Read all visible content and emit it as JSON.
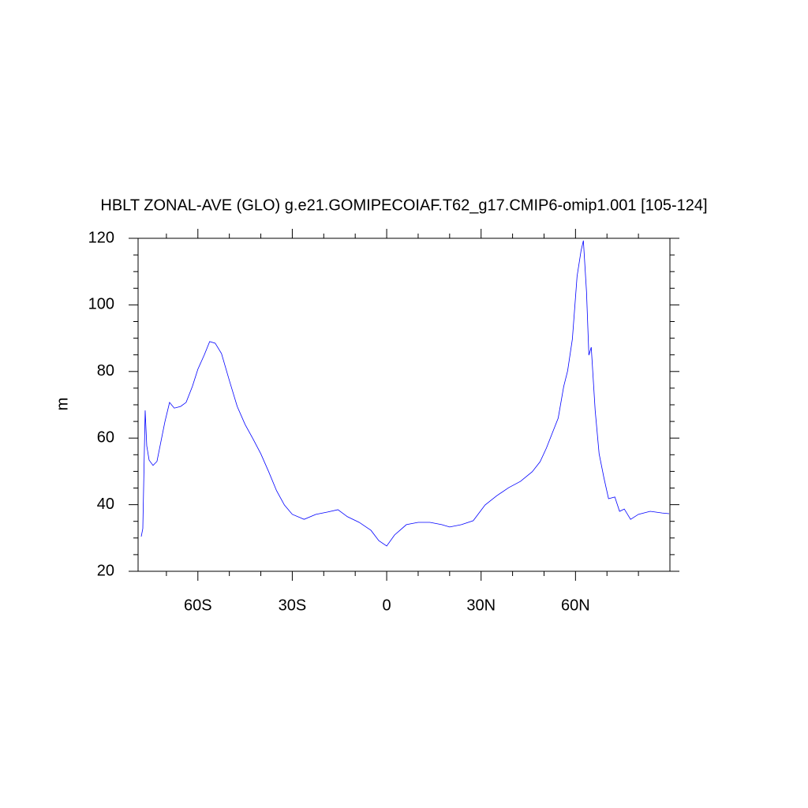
{
  "chart_data": {
    "type": "line",
    "title": "HBLT ZONAL-AVE (GLO) g.e21.GOMIPECOIAF.T62_g17.CMIP6-omip1.001 [105-124]",
    "ylabel": "m",
    "xlim": [
      -79,
      90
    ],
    "ylim": [
      20,
      120
    ],
    "xticks": [
      {
        "value": -60,
        "label": "60S"
      },
      {
        "value": -30,
        "label": "30S"
      },
      0,
      {
        "value": 30,
        "label": "30N"
      },
      {
        "value": 60,
        "label": "60N"
      }
    ],
    "yticks": [
      20,
      40,
      60,
      80,
      100,
      120
    ],
    "xminorticks": [
      -70,
      -50,
      -40,
      -20,
      -10,
      10,
      20,
      40,
      50,
      70,
      80
    ],
    "yminorticks": [
      25,
      30,
      35,
      45,
      50,
      55,
      65,
      70,
      75,
      85,
      90,
      95,
      105,
      110,
      115
    ],
    "x": [
      -78,
      -77.5,
      -76.75,
      -76.25,
      -75.5,
      -74.25,
      -73,
      -71.75,
      -70.5,
      -69,
      -67.5,
      -65.5,
      -63.75,
      -61.75,
      -60,
      -58,
      -56.25,
      -54.5,
      -52.5,
      -50,
      -47.5,
      -45,
      -42.5,
      -40,
      -37.5,
      -35,
      -32.5,
      -30,
      -26.25,
      -22.5,
      -18.75,
      -15.5,
      -12.5,
      -8.75,
      -5,
      -2.5,
      0,
      2.5,
      6.25,
      10,
      13.75,
      17.5,
      20,
      23.75,
      27.5,
      31.25,
      35,
      38.75,
      42.5,
      46.25,
      48.75,
      50.75,
      52.5,
      54.5,
      56.25,
      57.5,
      59,
      60.5,
      61.75,
      62.5,
      63.5,
      64.25,
      65,
      66.25,
      67.5,
      69,
      70.5,
      72.5,
      74,
      75.5,
      77.5,
      80,
      83.75,
      87.5,
      89.75
    ],
    "series": [
      {
        "name": "HBLT",
        "color": "#0000ff",
        "values": [
          30.4,
          32.8,
          68.3,
          57.7,
          53.4,
          51.8,
          53,
          58.9,
          64.8,
          70.7,
          69,
          69.5,
          70.7,
          75.5,
          80.7,
          84.9,
          89,
          88.5,
          85.4,
          77.3,
          69.5,
          64.1,
          59.8,
          55.3,
          49.9,
          44.2,
          39.9,
          37.1,
          35.6,
          37.1,
          37.8,
          38.5,
          36.4,
          34.7,
          32.3,
          29.2,
          27.6,
          30.9,
          34,
          34.7,
          34.7,
          34,
          33.3,
          34,
          35.2,
          39.9,
          42.7,
          45.1,
          47,
          49.9,
          52.9,
          57,
          61.2,
          66,
          75.5,
          80.2,
          89.7,
          108.6,
          116.2,
          119.3,
          103.9,
          84.9,
          87.3,
          68.3,
          55.3,
          48.2,
          41.8,
          42.3,
          38,
          38.7,
          35.6,
          37.1,
          38,
          37.5,
          37.3
        ]
      }
    ]
  }
}
